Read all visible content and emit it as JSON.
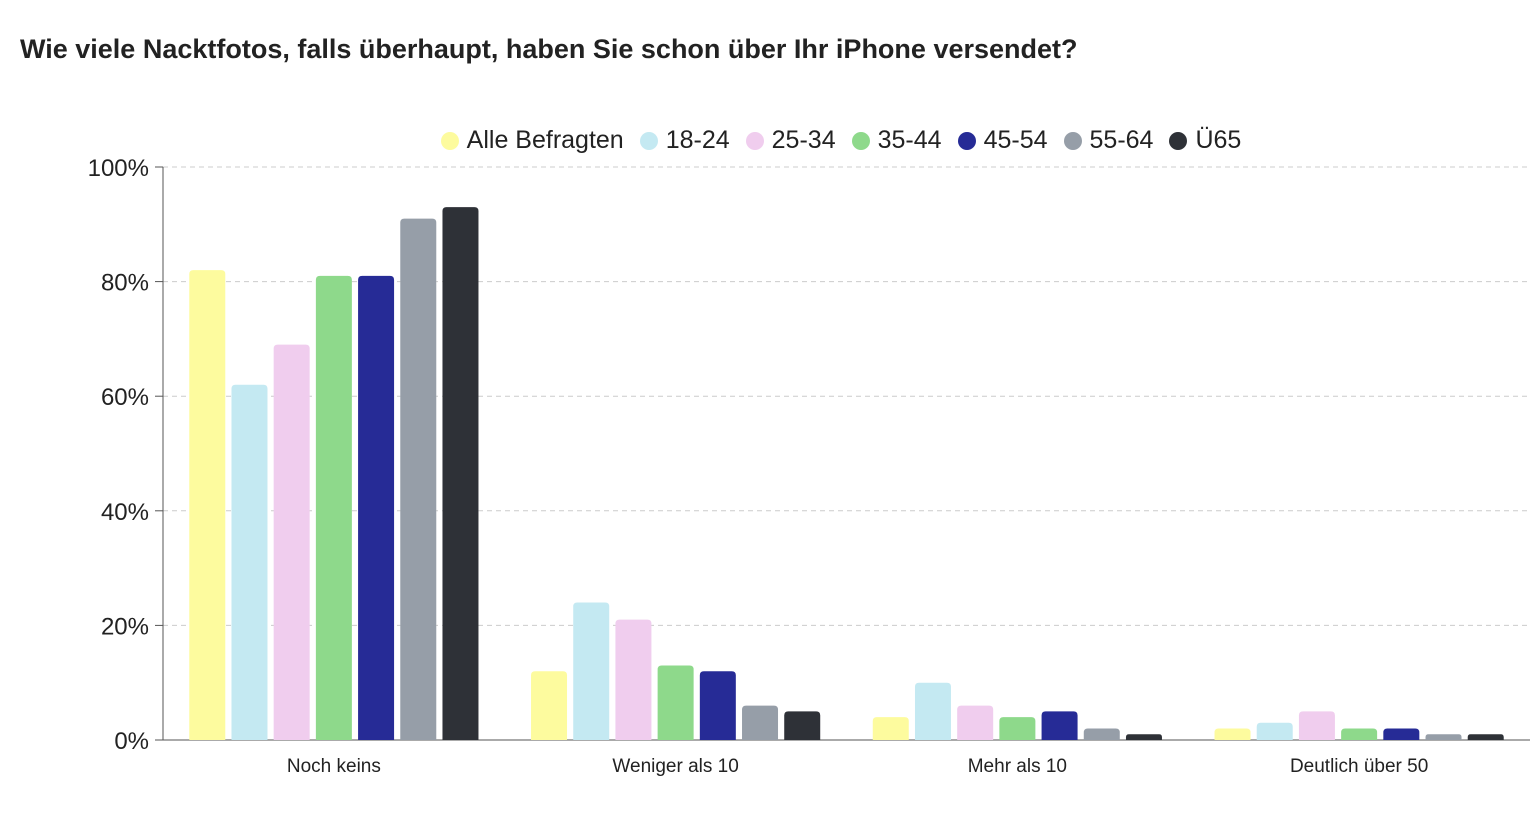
{
  "chart_data": {
    "type": "bar",
    "title": "Wie viele Nacktfotos, falls überhaupt, haben Sie schon über Ihr iPhone versendet?",
    "categories": [
      "Noch keins",
      "Weniger als 10",
      "Mehr als 10",
      "Deutlich über 50"
    ],
    "series": [
      {
        "name": "Alle Befragten",
        "color": "#fdfb9e",
        "values": [
          82,
          12,
          4,
          2
        ]
      },
      {
        "name": "18-24",
        "color": "#c4e9f2",
        "values": [
          62,
          24,
          10,
          3
        ]
      },
      {
        "name": "25-34",
        "color": "#f0cdee",
        "values": [
          69,
          21,
          6,
          5
        ]
      },
      {
        "name": "35-44",
        "color": "#8ed98b",
        "values": [
          81,
          13,
          4,
          2
        ]
      },
      {
        "name": "45-54",
        "color": "#262b96",
        "values": [
          81,
          12,
          5,
          2
        ]
      },
      {
        "name": "55-64",
        "color": "#969ea8",
        "values": [
          91,
          6,
          2,
          1
        ]
      },
      {
        "name": "Ü65",
        "color": "#2e3137",
        "values": [
          93,
          5,
          1,
          1
        ]
      }
    ],
    "ylim": [
      0,
      100
    ],
    "yticks": [
      "0%",
      "20%",
      "40%",
      "60%",
      "80%",
      "100%"
    ],
    "grid": true,
    "legend": "top"
  }
}
